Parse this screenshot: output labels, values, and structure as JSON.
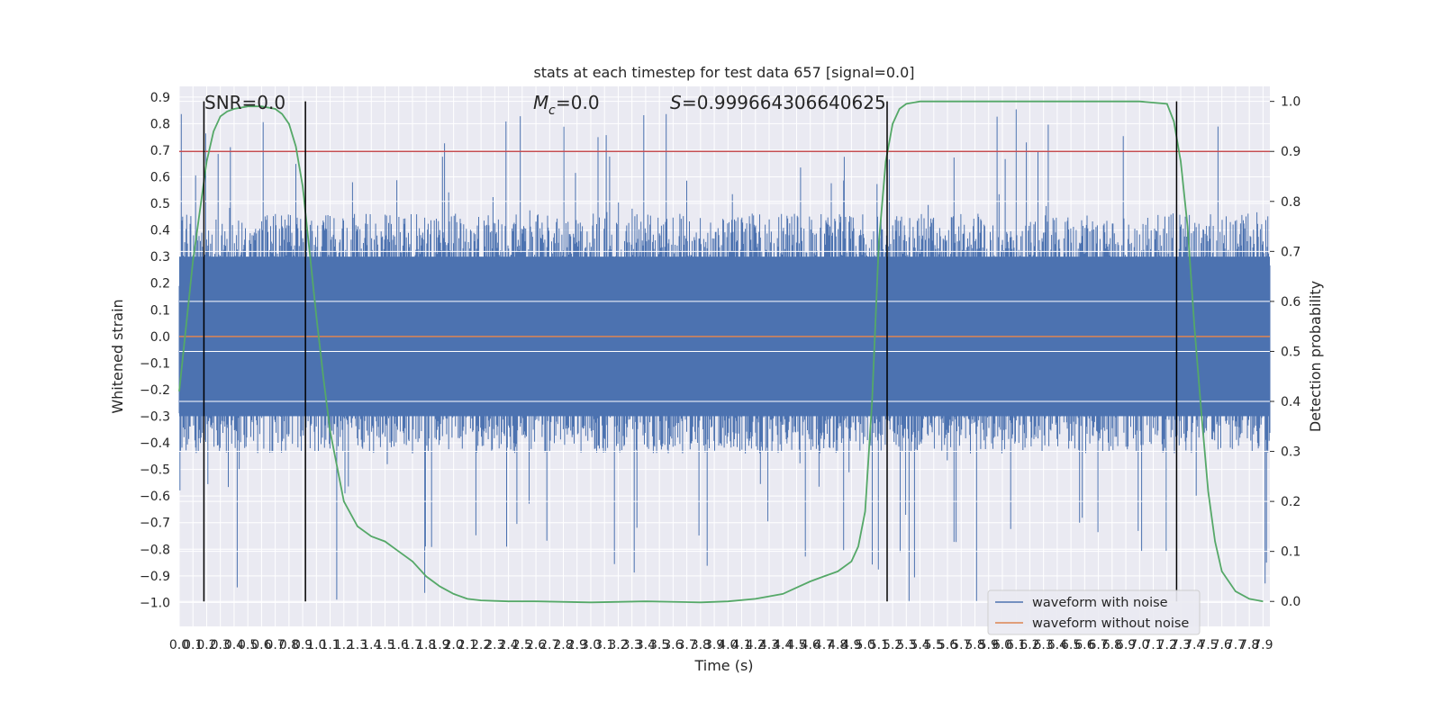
{
  "chart_data": {
    "type": "line",
    "title": "stats at each timestep for test data 657 [signal=0.0]",
    "xlabel": "Time (s)",
    "ylabel": "Whitened strain",
    "y2label": "Detection probability",
    "xlim": [
      0.0,
      7.95
    ],
    "ylim": [
      -1.09,
      0.94
    ],
    "y2lim": [
      -0.05,
      1.03
    ],
    "x_ticks": [
      0.0,
      0.1,
      0.2,
      0.3,
      0.4,
      0.5,
      0.6,
      0.7,
      0.8,
      0.9,
      1.0,
      1.1,
      1.2,
      1.3,
      1.4,
      1.5,
      1.6,
      1.7,
      1.8,
      1.9,
      2.0,
      2.1,
      2.2,
      2.3,
      2.4,
      2.5,
      2.6,
      2.7,
      2.8,
      2.9,
      3.0,
      3.1,
      3.2,
      3.3,
      3.4,
      3.5,
      3.6,
      3.7,
      3.8,
      3.9,
      4.0,
      4.1,
      4.2,
      4.3,
      4.4,
      4.5,
      4.6,
      4.7,
      4.8,
      4.9,
      5.0,
      5.1,
      5.2,
      5.3,
      5.4,
      5.5,
      5.6,
      5.7,
      5.8,
      5.9,
      6.0,
      6.1,
      6.2,
      6.3,
      6.4,
      6.5,
      6.6,
      6.7,
      6.8,
      6.9,
      7.0,
      7.1,
      7.2,
      7.3,
      7.4,
      7.5,
      7.6,
      7.7,
      7.8,
      7.9
    ],
    "y_ticks": [
      0.9,
      0.8,
      0.7,
      0.6,
      0.5,
      0.4,
      0.3,
      0.2,
      0.1,
      0.0,
      -0.1,
      -0.2,
      -0.3,
      -0.4,
      -0.5,
      -0.6,
      -0.7,
      -0.8,
      -0.9,
      -1.0
    ],
    "y2_ticks": [
      1.0,
      0.9,
      0.8,
      0.7,
      0.6,
      0.5,
      0.4,
      0.3,
      0.2,
      0.1,
      0.0
    ],
    "annotations": {
      "snr": "SNR=0.0",
      "mc": "=0.0",
      "s": "=0.999664306640625"
    },
    "series": [
      {
        "name": "waveform with noise",
        "color": "#4c72b0",
        "axis": "left",
        "noise_envelope": {
          "typical_upper": 0.42,
          "typical_lower": -0.4,
          "max": 0.86,
          "min": -1.0
        }
      },
      {
        "name": "waveform without noise",
        "color": "#dd8452",
        "axis": "left",
        "x": [
          0.0,
          7.95
        ],
        "y": [
          0.0,
          0.0
        ]
      },
      {
        "color": "#55a868",
        "axis": "right",
        "x": [
          0.0,
          0.1,
          0.2,
          0.25,
          0.3,
          0.35,
          0.4,
          0.5,
          0.6,
          0.7,
          0.75,
          0.8,
          0.85,
          0.9,
          0.95,
          1.0,
          1.05,
          1.1,
          1.2,
          1.3,
          1.4,
          1.5,
          1.6,
          1.7,
          1.8,
          1.9,
          2.0,
          2.1,
          2.2,
          2.4,
          2.6,
          3.0,
          3.4,
          3.8,
          4.0,
          4.2,
          4.4,
          4.6,
          4.7,
          4.8,
          4.9,
          4.95,
          5.0,
          5.05,
          5.1,
          5.15,
          5.2,
          5.25,
          5.3,
          5.4,
          5.5,
          5.6,
          6.0,
          6.5,
          7.0,
          7.2,
          7.25,
          7.3,
          7.35,
          7.4,
          7.45,
          7.5,
          7.55,
          7.6,
          7.7,
          7.8,
          7.9
        ],
        "y": [
          0.42,
          0.68,
          0.88,
          0.94,
          0.97,
          0.98,
          0.985,
          0.99,
          0.99,
          0.985,
          0.975,
          0.955,
          0.91,
          0.83,
          0.7,
          0.57,
          0.45,
          0.34,
          0.2,
          0.15,
          0.13,
          0.12,
          0.1,
          0.08,
          0.05,
          0.03,
          0.015,
          0.005,
          0.002,
          0.0,
          0.0,
          -0.002,
          0.0,
          -0.002,
          0.0,
          0.005,
          0.015,
          0.04,
          0.05,
          0.06,
          0.08,
          0.11,
          0.18,
          0.4,
          0.72,
          0.88,
          0.955,
          0.985,
          0.995,
          1.0,
          1.0,
          1.0,
          1.0,
          1.0,
          1.0,
          0.995,
          0.96,
          0.88,
          0.75,
          0.55,
          0.38,
          0.22,
          0.12,
          0.06,
          0.02,
          0.005,
          0.0
        ]
      }
    ],
    "hlines": [
      {
        "axis": "right",
        "y": 0.9,
        "color": "#c44e52"
      }
    ],
    "vlines": [
      {
        "x": 0.18
      },
      {
        "x": 0.92
      },
      {
        "x": 5.16
      },
      {
        "x": 7.27
      }
    ],
    "legend": {
      "placement": "lower-right",
      "entries": [
        {
          "label": "waveform with noise",
          "color": "#4c72b0"
        },
        {
          "label": "waveform without noise",
          "color": "#dd8452"
        }
      ]
    },
    "grid": true,
    "background": "#eaeaf2"
  }
}
